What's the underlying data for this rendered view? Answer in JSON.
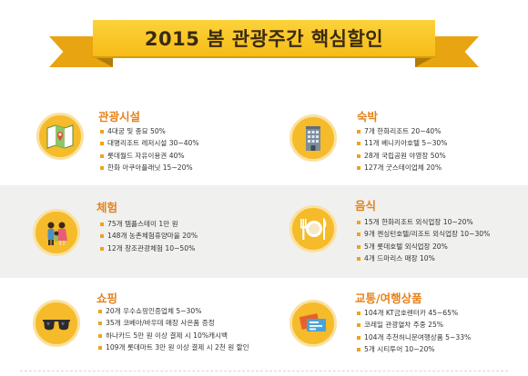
{
  "banner": {
    "title": "2015 봄 관광주간 핵심할인"
  },
  "sections": {
    "tourist": {
      "title": "관광시설",
      "icon": "map-icon",
      "items": [
        "4대궁 및 종묘 50%",
        "대명리조트 레저시설 30~40%",
        "롯데월드 자유이용권 40%",
        "한화 아쿠아플래닛 15~20%"
      ]
    },
    "lodging": {
      "title": "숙박",
      "icon": "building-icon",
      "items": [
        "7개 한화리조트 20~40%",
        "11개 베니키아호텔 5~30%",
        "28개 국립공원 야영장 50%",
        "127개 굿스테이업체 20%"
      ]
    },
    "experience": {
      "title": "체험",
      "icon": "family-icon",
      "items": [
        "75개 템플스테이 1만 원",
        "148개 농촌체험휴양마을 20%",
        "12개 창조관광체험 10~50%"
      ]
    },
    "food": {
      "title": "음식",
      "icon": "plate-icon",
      "items": [
        "15개 한화리조트 외식업장 10~20%",
        "9개 켄싱턴호텔/리조트 외식업장 10~30%",
        "5개 롯데호텔 외식업장 20%",
        "4개 드마리스 매장 10%"
      ]
    },
    "shopping": {
      "title": "쇼핑",
      "icon": "sunglasses-icon",
      "items": [
        "20개 우수쇼핑인증업체 5~30%",
        "35개 코베아/바우데 매장 사은품 증정",
        "하나카드 5만 원 이상 결제 시 10%캐시백",
        "109개 롯데마트 3만 원 이상 결제 시 2천 원 할인"
      ]
    },
    "transport": {
      "title": "교통/여행상품",
      "icon": "ticket-icon",
      "items": [
        "104개 KT금호렌터카 45~65%",
        "코레일 관광열차 주중 25%",
        "104개 추천허니문여행상품 5~33%",
        "5개 시티투어 10~20%"
      ]
    }
  },
  "colors": {
    "accent": "#f5bb2a",
    "title": "#e5821a",
    "banner": "#fcd23a"
  }
}
